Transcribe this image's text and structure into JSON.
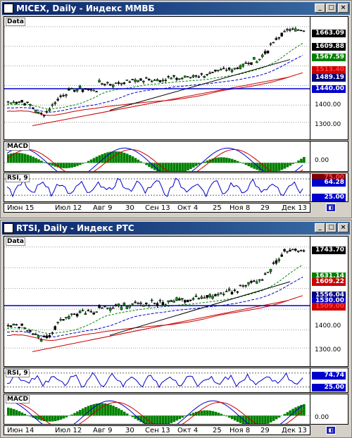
{
  "windows": [
    {
      "id": "micex",
      "title": "MICEX, Daily - Индекс ММВБ",
      "panes": {
        "price": {
          "label": "Data",
          "levels": [
            "1400.00",
            "1300.00"
          ],
          "tags": [
            {
              "text": "1663.09",
              "bg": "#000000",
              "fg": "#ffffff",
              "value": 1663.09
            },
            {
              "text": "1609.88",
              "bg": "#000000",
              "fg": "#ffffff",
              "value": 1609.88
            },
            {
              "text": "1567.59",
              "bg": "#008000",
              "fg": "#ffffff",
              "value": 1567.59
            },
            {
              "text": "1513.40",
              "bg": "#cc0000",
              "fg": "#ff4040",
              "value": 1513.4
            },
            {
              "text": "1489.19",
              "bg": "#000080",
              "fg": "#ffffff",
              "value": 1489.19
            },
            {
              "text": "1440.00",
              "bg": "#0000cc",
              "fg": "#ffffff",
              "value": 1440.0
            }
          ]
        },
        "macd": {
          "label": "MACD",
          "levels": [
            "0.00"
          ]
        },
        "rsi": {
          "label": "RSI, 9",
          "tags": [
            {
              "text": "75.00",
              "bg": "#800000",
              "fg": "#ff4040",
              "value": 75.0
            },
            {
              "text": "64.28",
              "bg": "#0000cc",
              "fg": "#ffffff",
              "value": 64.28
            },
            {
              "text": "25.00",
              "bg": "#0000cc",
              "fg": "#ffffff",
              "value": 25.0
            }
          ]
        }
      },
      "xaxis": [
        "Июн 15",
        "Июл 12",
        "Авг 9",
        "30",
        "Сен 13",
        "Окт 4",
        "25",
        "Ноя 8",
        "29",
        "Дек 13"
      ]
    },
    {
      "id": "rtsi",
      "title": "RTSI, Daily - Индекс РТС",
      "panes": {
        "price": {
          "label": "Data",
          "levels": [
            "1400.00",
            "1300.00"
          ],
          "tags": [
            {
              "text": "1743.70",
              "bg": "#000000",
              "fg": "#ffffff",
              "value": 1743.7
            },
            {
              "text": "1631.14",
              "bg": "#008000",
              "fg": "#ffffff",
              "value": 1631.14
            },
            {
              "text": "1609.22",
              "bg": "#cc0000",
              "fg": "#ffffff",
              "value": 1609.22
            },
            {
              "text": "1556.04",
              "bg": "#000080",
              "fg": "#ffffff",
              "value": 1556.04
            },
            {
              "text": "1530.00",
              "bg": "#0000cc",
              "fg": "#ffffff",
              "value": 1530.0
            },
            {
              "text": "1509.00",
              "bg": "#cc0000",
              "fg": "#ff4040",
              "value": 1509.0
            }
          ]
        },
        "rsi": {
          "label": "RSI, 9",
          "tags": [
            {
              "text": "74.74",
              "bg": "#0000cc",
              "fg": "#ffffff",
              "value": 74.74
            },
            {
              "text": "25.00",
              "bg": "#0000cc",
              "fg": "#ffffff",
              "value": 25.0
            }
          ]
        },
        "macd": {
          "label": "MACD",
          "levels": [
            "0.00"
          ]
        }
      },
      "xaxis": [
        "Июн 14",
        "Июл 12",
        "Авг 9",
        "30",
        "Сен 13",
        "Окт 4",
        "25",
        "Ноя 8",
        "29",
        "Дек 13"
      ]
    }
  ],
  "buttons": {
    "minimize": "_",
    "maximize": "□",
    "close": "×"
  },
  "corner_icon": "chart-scroll-icon",
  "colors": {
    "up": "#00a000",
    "down": "#000000",
    "macd_hist": "#008000",
    "trend": "#000000",
    "ma_red": "#cc0000",
    "ma_green": "#008000",
    "ma_blue": "#0000cc"
  }
}
